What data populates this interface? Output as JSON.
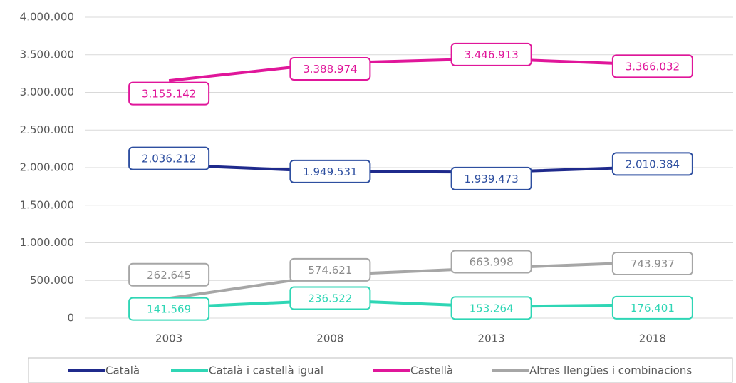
{
  "chart_data": {
    "type": "line",
    "categories": [
      "2003",
      "2008",
      "2013",
      "2018"
    ],
    "series": [
      {
        "name": "Català",
        "color": "#1f2a8c",
        "values": [
          2036212,
          1949531,
          1939473,
          2010384
        ],
        "value_labels": [
          "2.036.212",
          "1.949.531",
          "1.939.473",
          "2.010.384"
        ]
      },
      {
        "name": "Català i castellà igual",
        "color": "#2fd6b5",
        "values": [
          141569,
          236522,
          153264,
          176401
        ],
        "value_labels": [
          "141.569",
          "236.522",
          "153.264",
          "176.401"
        ]
      },
      {
        "name": "Castellà",
        "color": "#e0169a",
        "values": [
          3155142,
          3388974,
          3446913,
          3366032
        ],
        "value_labels": [
          "3.155.142",
          "3.388.974",
          "3.446.913",
          "3.366.032"
        ]
      },
      {
        "name": "Altres llengües i combinacions",
        "color": "#a6a6a6",
        "values": [
          262645,
          574621,
          663998,
          743937
        ],
        "value_labels": [
          "262.645",
          "574.621",
          "663.998",
          "743.937"
        ]
      }
    ],
    "ylim": [
      0,
      4000000
    ],
    "yticks": [
      0,
      {
        "value": 500000,
        "label": "500.000"
      },
      {
        "value": 1000000,
        "label": "1.000.000"
      },
      {
        "value": 1500000,
        "label": "1.500.000"
      },
      {
        "value": 2000000,
        "label": "2.000.000"
      },
      {
        "value": 2500000,
        "label": "2.500.000"
      },
      {
        "value": 3000000,
        "label": "3.000.000"
      },
      {
        "value": 3500000,
        "label": "3.500.000"
      },
      {
        "value": 4000000,
        "label": "4.000.000"
      }
    ],
    "grid": true,
    "legend": "bottom"
  }
}
